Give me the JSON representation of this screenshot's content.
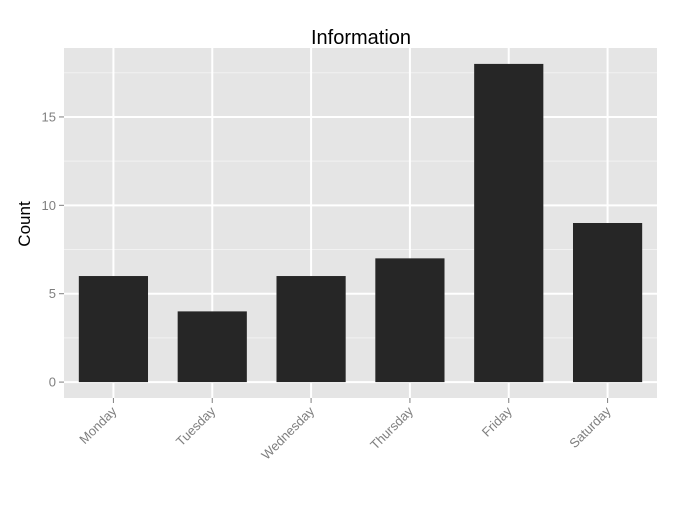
{
  "chart_data": {
    "type": "bar",
    "title": "Information",
    "xlabel": "",
    "ylabel": "Count",
    "categories": [
      "Monday",
      "Tuesday",
      "Wednesday",
      "Thursday",
      "Friday",
      "Saturday"
    ],
    "values": [
      6,
      4,
      6,
      7,
      18,
      9
    ],
    "ylim": [
      -0.9,
      18.9
    ],
    "yticks": [
      0,
      5,
      10,
      15
    ],
    "ytick_labels": [
      "0",
      "5",
      "10",
      "15"
    ],
    "grid": true,
    "colors": {
      "bar": "#262626",
      "panel_background": "#e5e5e5",
      "grid_major": "#ffffff",
      "grid_minor": "#f2f2f2",
      "tick_text": "#7f7f7f"
    }
  }
}
